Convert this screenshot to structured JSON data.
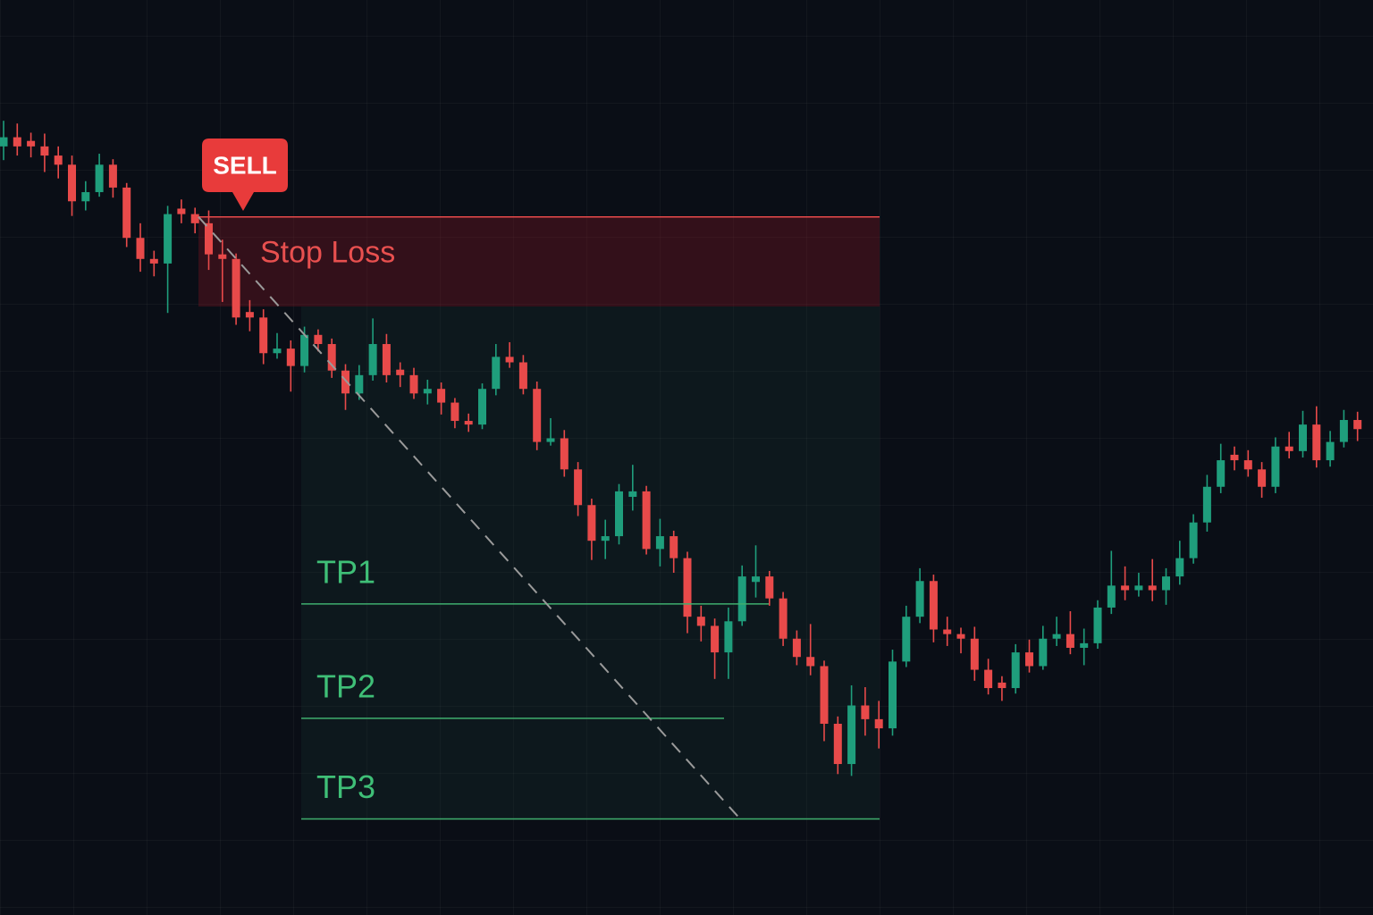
{
  "chart_data": {
    "type": "candlestick",
    "up_color": "#1f9e7c",
    "down_color": "#e84a4a",
    "ylim": [
      0,
      100
    ],
    "open": [
      84,
      85,
      84.6,
      84,
      83,
      82,
      78,
      79,
      82,
      79.5,
      74,
      71.7,
      71.2,
      77.2,
      76.6,
      75.6,
      72.2,
      71.7,
      65.9,
      65.3,
      61.4,
      61.9,
      60,
      63.4,
      62.4,
      59.5,
      57,
      59,
      62.4,
      59.6,
      59,
      57,
      57.5,
      56,
      54,
      53.6,
      57.5,
      61,
      60.4,
      57.5,
      51.7,
      52.1,
      48.7,
      44.8,
      40.9,
      41.4,
      45.7,
      46.3,
      40,
      41.4,
      39,
      32.6,
      31.6,
      28.7,
      32.1,
      36.4,
      37,
      34.6,
      30.2,
      28.2,
      27.2,
      20.9,
      16.5,
      22.9,
      21.4,
      20.4,
      27.7,
      32.6,
      36.5,
      31.2,
      30.7,
      30.2,
      26.8,
      25.4,
      24.8,
      28.7,
      27.2,
      30.2,
      30.7,
      29.2,
      29.7,
      33.6,
      36,
      35.5,
      36,
      35.5,
      37,
      39,
      42.9,
      46.8,
      50.3,
      49.7,
      48.7,
      46.8,
      51.2,
      50.7,
      53.6,
      49.7,
      51.7,
      54.1
    ],
    "high": [
      86.8,
      86.5,
      85.5,
      85.4,
      84,
      83,
      80.2,
      83.2,
      82.6,
      80,
      75.6,
      72.6,
      77.5,
      78.2,
      77.3,
      77,
      73.8,
      72.3,
      67.2,
      66.2,
      63.6,
      62.8,
      64.3,
      64,
      63,
      60.2,
      60.1,
      65.2,
      63.5,
      60.4,
      59.8,
      58.5,
      58.2,
      56.5,
      54.8,
      58.1,
      62.4,
      62.6,
      61.2,
      58.3,
      54.3,
      53,
      49.5,
      45.5,
      43.2,
      47.1,
      49.2,
      46.9,
      43.3,
      42,
      39.7,
      33.8,
      32.4,
      33.6,
      38.2,
      40.4,
      37.6,
      35.3,
      31.1,
      31.8,
      27.8,
      21.7,
      25.1,
      24.9,
      23.4,
      29,
      33.8,
      37.9,
      37.2,
      32.6,
      31.4,
      31.5,
      28,
      26.1,
      29.6,
      30.1,
      31.6,
      32.6,
      33.2,
      31.3,
      34.4,
      39.8,
      38.1,
      37.4,
      38.9,
      37.9,
      40.9,
      43.8,
      48.1,
      51.5,
      51.2,
      50.8,
      49.5,
      52.2,
      52.8,
      55.1,
      55.6,
      52.9,
      55.2,
      55
    ],
    "low": [
      82.5,
      83,
      82.8,
      81.2,
      80.5,
      76.4,
      77,
      78.5,
      78.4,
      73,
      70.3,
      69.8,
      65.8,
      75.6,
      74.5,
      70.5,
      67,
      64.5,
      63.8,
      60.2,
      60.8,
      57.2,
      59.3,
      61.6,
      58.7,
      55.2,
      56.3,
      58.4,
      58.2,
      57.7,
      56.4,
      55.8,
      54.7,
      53.2,
      52.8,
      53.1,
      56.8,
      59.8,
      56.9,
      50.8,
      51.3,
      47.9,
      43.6,
      38.8,
      38.9,
      40.5,
      44.2,
      39.4,
      38.1,
      37.4,
      30.8,
      29.9,
      25.8,
      25.8,
      31.6,
      34.7,
      33.8,
      29.4,
      27.3,
      26.2,
      19,
      15.4,
      15.2,
      19.6,
      18.2,
      19.6,
      27.1,
      31.9,
      29.8,
      29.4,
      28.6,
      25.6,
      24.1,
      23.4,
      24.2,
      26.5,
      26.8,
      29.4,
      28.5,
      27.3,
      29.1,
      32.9,
      34.4,
      34.8,
      34.3,
      33.9,
      36.1,
      38.4,
      41.9,
      46.1,
      48.6,
      47.9,
      45.6,
      46.1,
      49.9,
      50,
      48.9,
      49,
      51.1,
      51.8
    ],
    "close": [
      85,
      84,
      84,
      83,
      82,
      78,
      79,
      82,
      79.5,
      74,
      71.7,
      71.2,
      76.6,
      76.6,
      75.6,
      72.2,
      71.7,
      65.3,
      65.3,
      61.4,
      61.9,
      60,
      63.4,
      62.4,
      59.5,
      57,
      59,
      62.4,
      59,
      59,
      57,
      57.5,
      56,
      54,
      53.6,
      57.5,
      61,
      60.4,
      57.5,
      51.7,
      52.1,
      48.7,
      44.8,
      40.9,
      41.4,
      46.3,
      46.3,
      40,
      41.4,
      39,
      32.6,
      31.6,
      28.7,
      32.1,
      37,
      37,
      34.6,
      30.2,
      28.2,
      27.2,
      20.9,
      16.5,
      22.9,
      21.4,
      20.4,
      27.7,
      32.6,
      36.5,
      31.2,
      30.7,
      30.2,
      26.8,
      24.8,
      24.8,
      28.7,
      27.2,
      30.2,
      30.7,
      29.2,
      29.7,
      33.6,
      36,
      35.5,
      36,
      35.5,
      37,
      39,
      42.9,
      46.8,
      49.7,
      49.7,
      48.7,
      46.8,
      51.2,
      50.7,
      53.6,
      49.7,
      51.7,
      54.1,
      53.1
    ],
    "signal": "SELL",
    "stop_loss": {
      "label": "Stop Loss",
      "range": [
        66.5,
        76.3
      ]
    },
    "targets": [
      {
        "label": "TP1",
        "value": 34
      },
      {
        "label": "TP2",
        "value": 21.5
      },
      {
        "label": "TP3",
        "value": 10.5
      }
    ]
  }
}
